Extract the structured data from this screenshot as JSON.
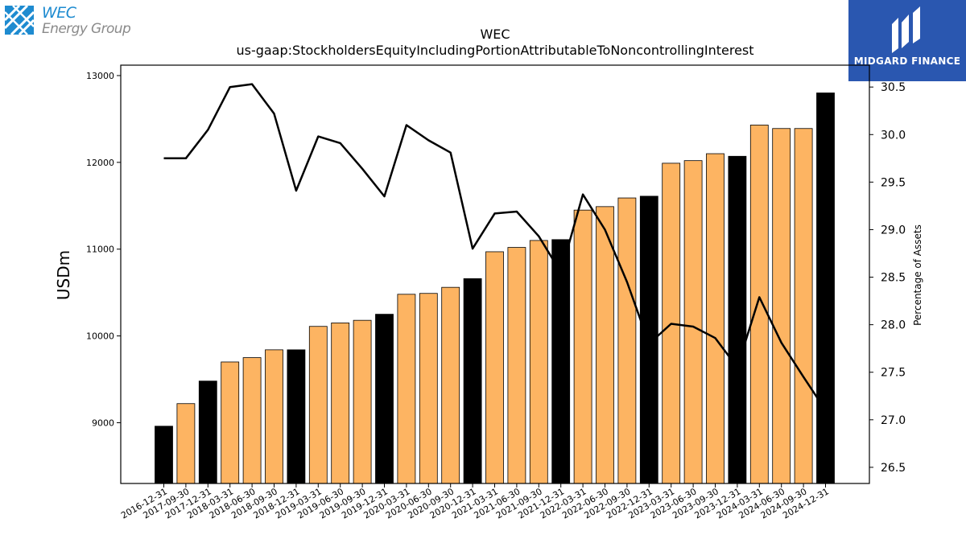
{
  "logos": {
    "left": {
      "line1": "WEC",
      "line2": "Energy Group"
    },
    "right": {
      "name": "MIDGARD FINANCE"
    }
  },
  "chart_data": {
    "type": "bar",
    "title": "WEC",
    "subtitle": "us-gaap:StockholdersEquityIncludingPortionAttributableToNoncontrollingInterest",
    "ylabel": "USDm",
    "y2label": "Percentage of Assets",
    "ylim": [
      8300,
      13120
    ],
    "y2lim": [
      26.33,
      30.73
    ],
    "yticks": [
      9000,
      10000,
      11000,
      12000,
      13000
    ],
    "y2ticks": [
      26.5,
      27.0,
      27.5,
      28.0,
      28.5,
      29.0,
      29.5,
      30.0,
      30.5
    ],
    "colors": {
      "year_end_bar": "#000000",
      "quarter_bar": "#fdb462",
      "line": "#000000"
    },
    "categories": [
      "2016-12-31",
      "2017-09-30",
      "2017-12-31",
      "2018-03-31",
      "2018-06-30",
      "2018-09-30",
      "2018-12-31",
      "2019-03-31",
      "2019-06-30",
      "2019-09-30",
      "2019-12-31",
      "2020-03-31",
      "2020-06-30",
      "2020-09-30",
      "2020-12-31",
      "2021-03-31",
      "2021-06-30",
      "2021-09-30",
      "2021-12-31",
      "2022-03-31",
      "2022-06-30",
      "2022-09-30",
      "2022-12-31",
      "2023-03-31",
      "2023-06-30",
      "2023-09-30",
      "2023-12-31",
      "2024-03-31",
      "2024-06-30",
      "2024-09-30",
      "2024-12-31"
    ],
    "series": [
      {
        "type": "bar",
        "values": [
          8960,
          9220,
          9480,
          9700,
          9750,
          9840,
          9840,
          10110,
          10150,
          10180,
          10250,
          10480,
          10490,
          10560,
          10660,
          10970,
          11020,
          11100,
          11110,
          11450,
          11490,
          11590,
          11610,
          11990,
          12020,
          12100,
          12070,
          12430,
          12390,
          12390,
          12800
        ],
        "year_end": [
          true,
          false,
          true,
          false,
          false,
          false,
          true,
          false,
          false,
          false,
          true,
          false,
          false,
          false,
          true,
          false,
          false,
          false,
          true,
          false,
          false,
          false,
          true,
          false,
          false,
          false,
          true,
          false,
          false,
          false,
          true
        ]
      },
      {
        "type": "line",
        "axis": "right",
        "values": [
          29.75,
          29.75,
          30.05,
          30.5,
          30.53,
          30.22,
          29.41,
          29.98,
          29.91,
          29.64,
          29.35,
          30.1,
          29.94,
          29.81,
          28.8,
          29.17,
          29.19,
          28.93,
          28.55,
          29.37,
          29.0,
          28.45,
          27.8,
          28.01,
          27.98,
          27.86,
          27.55,
          28.29,
          27.81,
          27.45,
          27.1
        ]
      }
    ]
  }
}
